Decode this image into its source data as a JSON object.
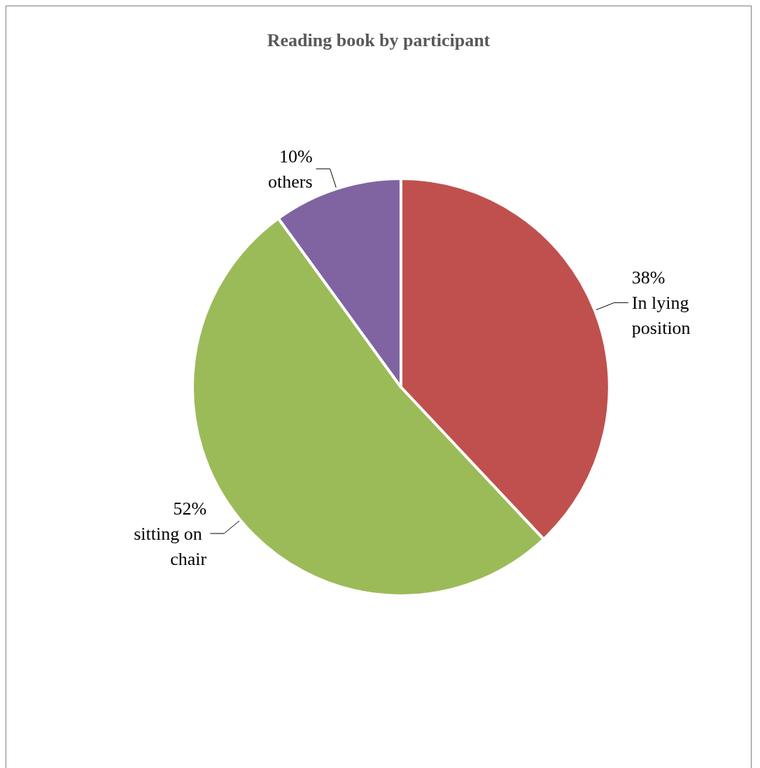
{
  "chart_data": {
    "type": "pie",
    "title": "Reading book by participant",
    "categories": [
      "In lying position",
      "sitting on chair",
      "others"
    ],
    "values": [
      38,
      52,
      10
    ],
    "colors": [
      "#c0504d",
      "#9bbb59",
      "#8064a2"
    ],
    "value_labels": [
      "38%",
      "52%",
      "10%"
    ]
  }
}
